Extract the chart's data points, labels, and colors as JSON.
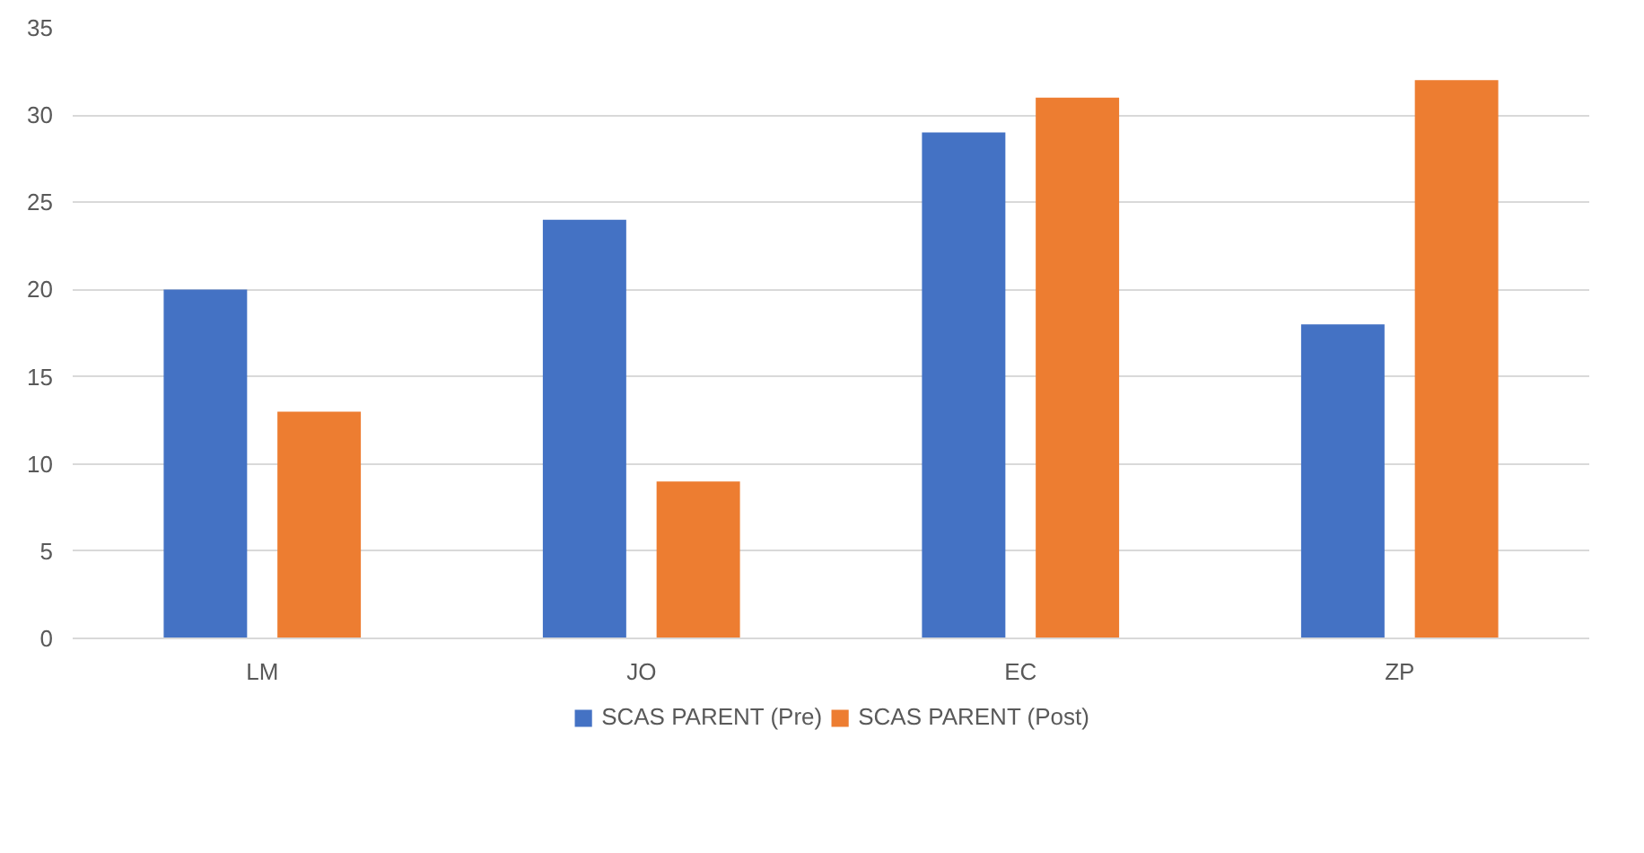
{
  "chart_data": {
    "type": "bar",
    "categories": [
      "LM",
      "JO",
      "EC",
      "ZP"
    ],
    "series": [
      {
        "name": "SCAS PARENT (Pre)",
        "color": "#4472c4",
        "values": [
          20,
          24,
          29,
          18
        ]
      },
      {
        "name": "SCAS PARENT (Post)",
        "color": "#ed7d31",
        "values": [
          13,
          9,
          31,
          32
        ]
      }
    ],
    "ylim": [
      0,
      35
    ],
    "yticks": [
      0,
      5,
      10,
      15,
      20,
      25,
      30,
      35
    ],
    "grid": "y",
    "legend": "bottom"
  }
}
